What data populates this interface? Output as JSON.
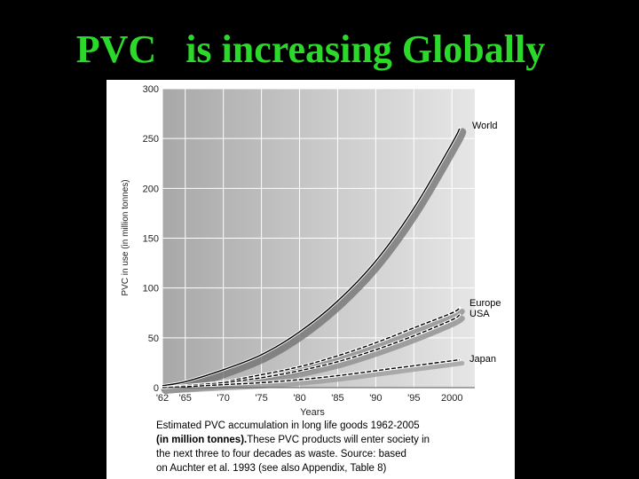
{
  "slide": {
    "title": "PVC   is increasing Globally"
  },
  "caption": {
    "line1": "Estimated PVC accumulation in long life goods 1962-2005",
    "line2_bold": "(in million tonnes).",
    "line2_rest": "These PVC products will enter society in",
    "line3": "the next three to four decades as waste. Source: based",
    "line4": "on Auchter et al. 1993 (see also Appendix, Table 8)"
  },
  "chart_data": {
    "type": "line",
    "title": "",
    "xlabel": "Years",
    "ylabel": "PVC in use (in million tonnes)",
    "xlim": [
      1962,
      2003
    ],
    "ylim": [
      0,
      300
    ],
    "x_ticks": [
      1962,
      1965,
      1970,
      1975,
      1980,
      1985,
      1990,
      1995,
      2000
    ],
    "x_tick_labels": [
      "'62",
      "'65",
      "'70",
      "'75",
      "'80",
      "'85",
      "'90",
      "'95",
      "2000"
    ],
    "y_ticks": [
      0,
      50,
      100,
      150,
      200,
      250,
      300
    ],
    "y_tick_labels": [
      "0",
      "50",
      "100",
      "150",
      "200",
      "250",
      "300"
    ],
    "grid": true,
    "legend": "inline labels at right end of each series",
    "series": [
      {
        "name": "World",
        "color": "#000000",
        "x": [
          1962,
          1965,
          1970,
          1975,
          1980,
          1985,
          1990,
          1995,
          2000,
          2001
        ],
        "values": [
          2,
          6,
          18,
          33,
          56,
          87,
          127,
          180,
          245,
          260
        ]
      },
      {
        "name": "Europe",
        "color": "#000000",
        "x": [
          1962,
          1965,
          1970,
          1975,
          1980,
          1985,
          1990,
          1995,
          2000,
          2001
        ],
        "values": [
          0,
          2,
          6,
          13,
          21,
          32,
          45,
          60,
          75,
          80
        ]
      },
      {
        "name": "USA",
        "color": "#000000",
        "x": [
          1962,
          1965,
          1970,
          1975,
          1980,
          1985,
          1990,
          1995,
          2000,
          2001
        ],
        "values": [
          0,
          2,
          5,
          10,
          17,
          26,
          38,
          52,
          68,
          73
        ]
      },
      {
        "name": "Japan",
        "color": "#000000",
        "x": [
          1962,
          1965,
          1970,
          1975,
          1980,
          1985,
          1990,
          1995,
          2000,
          2001
        ],
        "values": [
          0,
          1,
          3,
          5,
          8,
          12,
          17,
          22,
          27,
          28
        ]
      }
    ]
  }
}
